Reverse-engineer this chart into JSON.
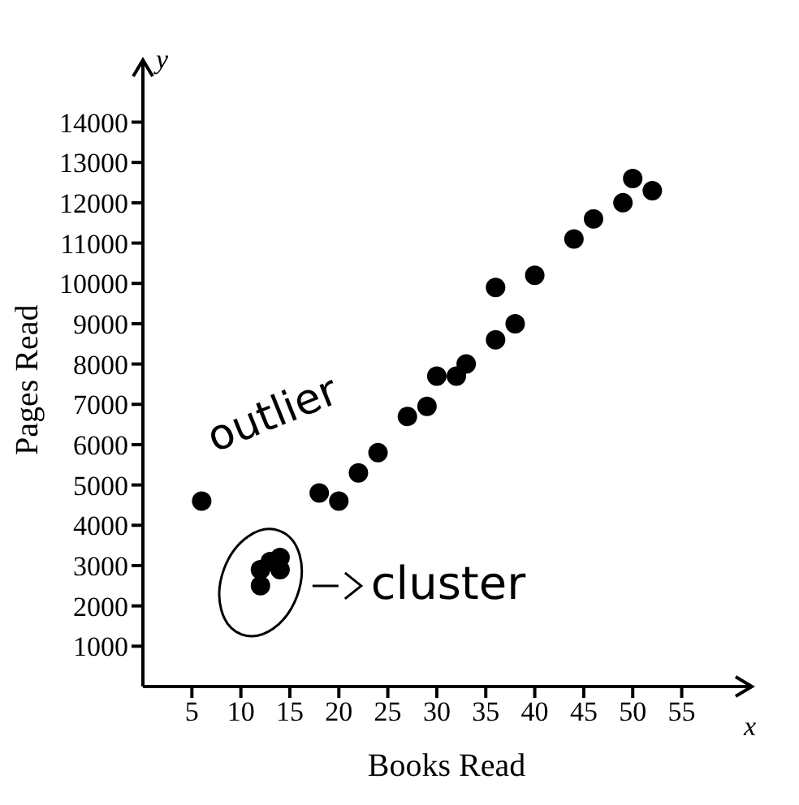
{
  "chart_data": {
    "type": "scatter",
    "xlabel": "Books Read",
    "ylabel": "Pages Read",
    "x": [
      6,
      12,
      12,
      13,
      14,
      14,
      18,
      20,
      22,
      24,
      27,
      29,
      30,
      32,
      33,
      36,
      36,
      38,
      40,
      44,
      46,
      49,
      50,
      52
    ],
    "values": [
      4600,
      2500,
      2900,
      3100,
      3200,
      2900,
      4800,
      4600,
      5300,
      5800,
      6700,
      6950,
      7700,
      7700,
      8000,
      8600,
      9900,
      9000,
      10200,
      11100,
      11600,
      12000,
      12600,
      12300
    ],
    "color": "#000000",
    "marker": "circle",
    "grid": false,
    "legend": false,
    "xlim": [
      0,
      62
    ],
    "xticks": [
      5,
      10,
      15,
      20,
      25,
      30,
      35,
      40,
      45,
      50,
      55
    ],
    "ylim": [
      0,
      15500
    ],
    "yticks": [
      1000,
      2000,
      3000,
      4000,
      5000,
      6000,
      7000,
      8000,
      9000,
      10000,
      11000,
      12000,
      13000,
      14000
    ],
    "annotations": [
      "y",
      "x",
      {
        "text": "outlier",
        "x": 6,
        "y": 4600
      },
      {
        "text": "cluster",
        "x": 13,
        "y": 2900
      }
    ]
  }
}
